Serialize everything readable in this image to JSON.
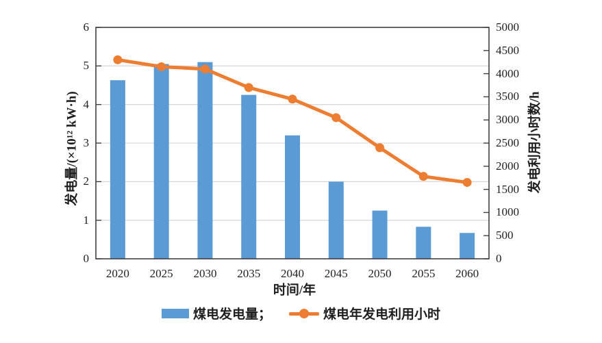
{
  "chart_data": {
    "type": "bar+line combo",
    "title": "",
    "categories": [
      "2020",
      "2025",
      "2030",
      "2035",
      "2040",
      "2045",
      "2050",
      "2055",
      "2060"
    ],
    "series": [
      {
        "name": "煤电发电量",
        "type": "bar",
        "axis": "left",
        "values": [
          4.63,
          5.05,
          5.1,
          4.25,
          3.2,
          2.0,
          1.25,
          0.83,
          0.67
        ]
      },
      {
        "name": "煤电年发电利用小时",
        "type": "line",
        "axis": "right",
        "values": [
          4300,
          4150,
          4100,
          3700,
          3450,
          3050,
          2400,
          1780,
          1650
        ]
      }
    ],
    "left_axis": {
      "label": "发电量/(×10¹² kW·h)",
      "min": 0,
      "max": 6,
      "ticks": [
        0,
        1,
        2,
        3,
        4,
        5,
        6
      ]
    },
    "right_axis": {
      "label": "发电利用小时数/h",
      "min": 0,
      "max": 5000,
      "ticks": [
        0,
        500,
        1000,
        1500,
        2000,
        2500,
        3000,
        3500,
        4000,
        4500,
        5000
      ]
    },
    "x_axis": {
      "label": "时间/年"
    },
    "legend": {
      "position": "bottom",
      "items": [
        {
          "label": "煤电发电量；",
          "marker": "bar-swatch"
        },
        {
          "label": "煤电年发电利用小时",
          "marker": "line-dot-swatch"
        }
      ]
    },
    "grid": true
  },
  "colors": {
    "bar": "#5B9BD5",
    "line": "#ED7D31",
    "grid": "#D9D9D9",
    "axis": "#404040",
    "text": "#1f1f1f",
    "background": "#FFFFFF"
  }
}
